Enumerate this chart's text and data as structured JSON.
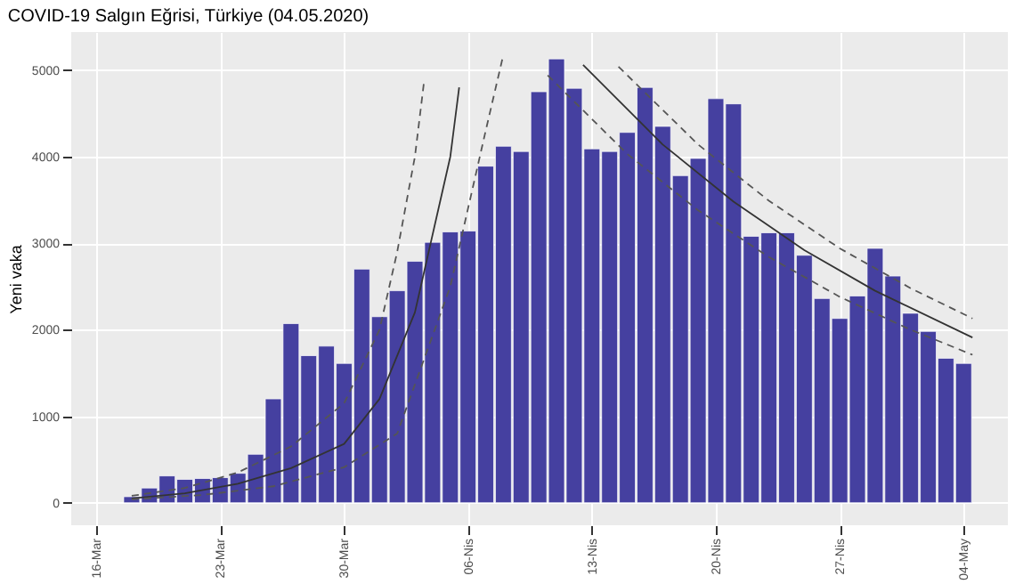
{
  "chart_data": {
    "type": "bar",
    "title": "COVID-19 Salgın Eğrisi, Türkiye (04.05.2020)",
    "ylabel": "Yeni vaka",
    "x": [
      "2020-03-18",
      "2020-03-19",
      "2020-03-20",
      "2020-03-21",
      "2020-03-22",
      "2020-03-23",
      "2020-03-24",
      "2020-03-25",
      "2020-03-26",
      "2020-03-27",
      "2020-03-28",
      "2020-03-29",
      "2020-03-30",
      "2020-03-31",
      "2020-04-01",
      "2020-04-02",
      "2020-04-03",
      "2020-04-04",
      "2020-04-05",
      "2020-04-06",
      "2020-04-07",
      "2020-04-08",
      "2020-04-09",
      "2020-04-10",
      "2020-04-11",
      "2020-04-12",
      "2020-04-13",
      "2020-04-14",
      "2020-04-15",
      "2020-04-16",
      "2020-04-17",
      "2020-04-18",
      "2020-04-19",
      "2020-04-20",
      "2020-04-21",
      "2020-04-22",
      "2020-04-23",
      "2020-04-24",
      "2020-04-25",
      "2020-04-26",
      "2020-04-27",
      "2020-04-28",
      "2020-04-29",
      "2020-04-30",
      "2020-05-01",
      "2020-05-02",
      "2020-05-03",
      "2020-05-04"
    ],
    "series": [
      {
        "color": "#4540a0",
        "values": [
          70,
          170,
          310,
          270,
          280,
          290,
          340,
          560,
          1200,
          2070,
          1700,
          1810,
          1610,
          2700,
          2150,
          2450,
          2790,
          3010,
          3130,
          3140,
          3890,
          4120,
          4060,
          4750,
          5130,
          4790,
          4090,
          4060,
          4280,
          4800,
          4350,
          3780,
          3980,
          4670,
          4610,
          3080,
          3120,
          3120,
          2860,
          2360,
          2130,
          2390,
          2940,
          2620,
          2190,
          1980,
          1670,
          1610
        ]
      },
      {
        "type": "line",
        "line_style": "solid",
        "color": "#333333",
        "x": [
          "2020-03-18",
          "2020-03-21",
          "2020-03-24",
          "2020-03-27",
          "2020-03-30",
          "2020-04-01",
          "2020-04-03",
          "2020-04-05",
          "2020-04-05T12:00"
        ],
        "values": [
          50,
          110,
          220,
          400,
          680,
          1200,
          2200,
          4000,
          4800
        ]
      },
      {
        "type": "line",
        "line_style": "dashed",
        "color": "#555555",
        "x": [
          "2020-03-18",
          "2020-03-21",
          "2020-03-24",
          "2020-03-27",
          "2020-03-30",
          "2020-04-01",
          "2020-04-02",
          "2020-04-03",
          "2020-04-03T12:00"
        ],
        "values": [
          80,
          170,
          350,
          650,
          1150,
          2000,
          2900,
          4000,
          4840
        ]
      },
      {
        "type": "line",
        "line_style": "dashed",
        "color": "#555555",
        "x": [
          "2020-03-18",
          "2020-03-22",
          "2020-03-26",
          "2020-03-30",
          "2020-04-02",
          "2020-04-05",
          "2020-04-06",
          "2020-04-07",
          "2020-04-08"
        ],
        "values": [
          40,
          90,
          190,
          410,
          800,
          2500,
          3400,
          4300,
          5180
        ]
      },
      {
        "type": "line",
        "line_style": "solid",
        "color": "#333333",
        "x": [
          "2020-04-12T12:00",
          "2020-04-17",
          "2020-04-21",
          "2020-04-25",
          "2020-04-29",
          "2020-05-04T12:00"
        ],
        "values": [
          5060,
          4140,
          3480,
          2920,
          2450,
          1910
        ]
      },
      {
        "type": "line",
        "line_style": "dashed",
        "color": "#555555",
        "x": [
          "2020-04-14T12:00",
          "2020-04-19",
          "2020-04-23",
          "2020-04-27",
          "2020-05-01",
          "2020-05-04T12:00"
        ],
        "values": [
          5040,
          4140,
          3490,
          2940,
          2480,
          2130
        ]
      },
      {
        "type": "line",
        "line_style": "dashed",
        "color": "#555555",
        "x": [
          "2020-04-10T12:00",
          "2020-04-15",
          "2020-04-19",
          "2020-04-23",
          "2020-04-27",
          "2020-05-01",
          "2020-05-04T12:00"
        ],
        "values": [
          4940,
          4030,
          3380,
          2840,
          2380,
          2000,
          1710
        ]
      }
    ],
    "xlim": [
      "2020-03-14T14:00",
      "2020-05-06T12:00"
    ],
    "xticks": [
      {
        "value": "2020-03-16",
        "label": "16-Mar"
      },
      {
        "value": "2020-03-23",
        "label": "23-Mar"
      },
      {
        "value": "2020-03-30",
        "label": "30-Mar"
      },
      {
        "value": "2020-04-06",
        "label": "06-Nis"
      },
      {
        "value": "2020-04-13",
        "label": "13-Nis"
      },
      {
        "value": "2020-04-20",
        "label": "20-Nis"
      },
      {
        "value": "2020-04-27",
        "label": "27-Nis"
      },
      {
        "value": "2020-05-04",
        "label": "04-May"
      }
    ],
    "ylim": [
      -260,
      5440
    ],
    "yticks": [
      0,
      1000,
      2000,
      3000,
      4000,
      5000
    ],
    "grid": true
  }
}
